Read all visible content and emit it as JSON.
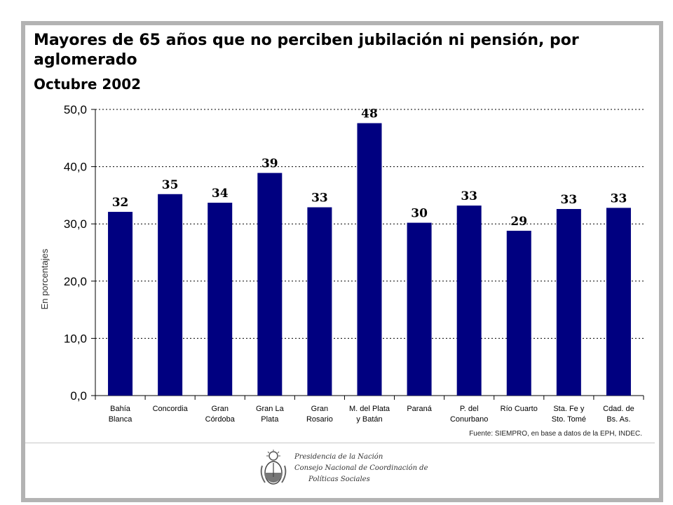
{
  "title": "Mayores de 65 años que no perciben jubilación ni pensión, por aglomerado",
  "subtitle": "Octubre 2002",
  "source": "Fuente: SIEMPRO, en base a datos de la EPH, INDEC.",
  "footer": {
    "line1": "Presidencia de la Nación",
    "line2": "Consejo Nacional de Coordinación de",
    "line3": "Políticas Sociales",
    "emblem": "national-coat-of-arms"
  },
  "colors": {
    "bar": "#000080",
    "frame": "#b3b3b3",
    "grid": "#000000"
  },
  "chart_data": {
    "type": "bar",
    "title": "Mayores de 65 años que no perciben jubilación ni pensión, por aglomerado",
    "subtitle": "Octubre 2002",
    "ylabel": "En porcentajes",
    "xlabel": "",
    "ylim": [
      0,
      50
    ],
    "yticks": [
      "0,0",
      "10,0",
      "20,0",
      "30,0",
      "40,0",
      "50,0"
    ],
    "grid": "horizontal dotted",
    "categories": [
      [
        "Bahía",
        "Blanca"
      ],
      [
        "Concordia"
      ],
      [
        "Gran",
        "Córdoba"
      ],
      [
        "Gran La",
        "Plata"
      ],
      [
        "Gran",
        "Rosario"
      ],
      [
        "M. del Plata",
        "y Batán"
      ],
      [
        "Paraná"
      ],
      [
        "P. del",
        "Conurbano"
      ],
      [
        "Río Cuarto"
      ],
      [
        "Sta. Fe y",
        "Sto. Tomé"
      ],
      [
        "Cdad. de",
        "Bs. As."
      ]
    ],
    "values": [
      32.1,
      35.2,
      33.7,
      38.9,
      32.9,
      47.6,
      30.2,
      33.2,
      28.8,
      32.6,
      32.8
    ],
    "data_labels": [
      "32",
      "35",
      "34",
      "39",
      "33",
      "48",
      "30",
      "33",
      "29",
      "33",
      "33"
    ]
  }
}
